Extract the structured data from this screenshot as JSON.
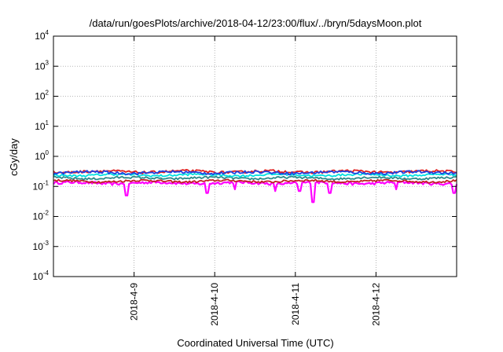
{
  "chart_data": {
    "type": "line",
    "title": "/data/run/goesPlots/archive/2018-04-12/23:00/flux/../bryn/5daysMoon.plot",
    "xlabel": "Coordinated Universal Time (UTC)",
    "ylabel": "cGy/day",
    "yscale": "log",
    "ylim": [
      0.0001,
      10000
    ],
    "xlim": [
      "2018-04-08 00:00",
      "2018-04-13 00:00"
    ],
    "x_ticks": [
      "2018-4-9",
      "2018-4-10",
      "2018-4-11",
      "2018-4-12"
    ],
    "y_ticks": [
      {
        "base": "10",
        "exp": "-4"
      },
      {
        "base": "10",
        "exp": "-3"
      },
      {
        "base": "10",
        "exp": "-2"
      },
      {
        "base": "10",
        "exp": "-1"
      },
      {
        "base": "10",
        "exp": "0"
      },
      {
        "base": "10",
        "exp": "1"
      },
      {
        "base": "10",
        "exp": "2"
      },
      {
        "base": "10",
        "exp": "3"
      },
      {
        "base": "10",
        "exp": "4"
      }
    ],
    "grid": true,
    "series": [
      {
        "color": "#ff00ff",
        "base": 0.13,
        "amp": 0.1,
        "dips": true
      },
      {
        "color": "#c02020",
        "base": 0.15,
        "amp": 0.08,
        "dips": false
      },
      {
        "color": "#2a8a8a",
        "base": 0.19,
        "amp": 0.08,
        "dips": false
      },
      {
        "color": "#00e0e0",
        "base": 0.24,
        "amp": 0.08,
        "dips": false
      },
      {
        "color": "#e02020",
        "base": 0.31,
        "amp": 0.1,
        "dips": false
      },
      {
        "color": "#2040e0",
        "base": 0.29,
        "amp": 0.1,
        "dips": false
      }
    ],
    "dip_events": [
      {
        "x": 0.18,
        "value": 0.05
      },
      {
        "x": 0.38,
        "value": 0.06
      },
      {
        "x": 0.45,
        "value": 0.08
      },
      {
        "x": 0.55,
        "value": 0.07
      },
      {
        "x": 0.61,
        "value": 0.07
      },
      {
        "x": 0.645,
        "value": 0.03
      },
      {
        "x": 0.685,
        "value": 0.06
      },
      {
        "x": 0.85,
        "value": 0.08
      },
      {
        "x": 0.995,
        "value": 0.06
      }
    ]
  }
}
